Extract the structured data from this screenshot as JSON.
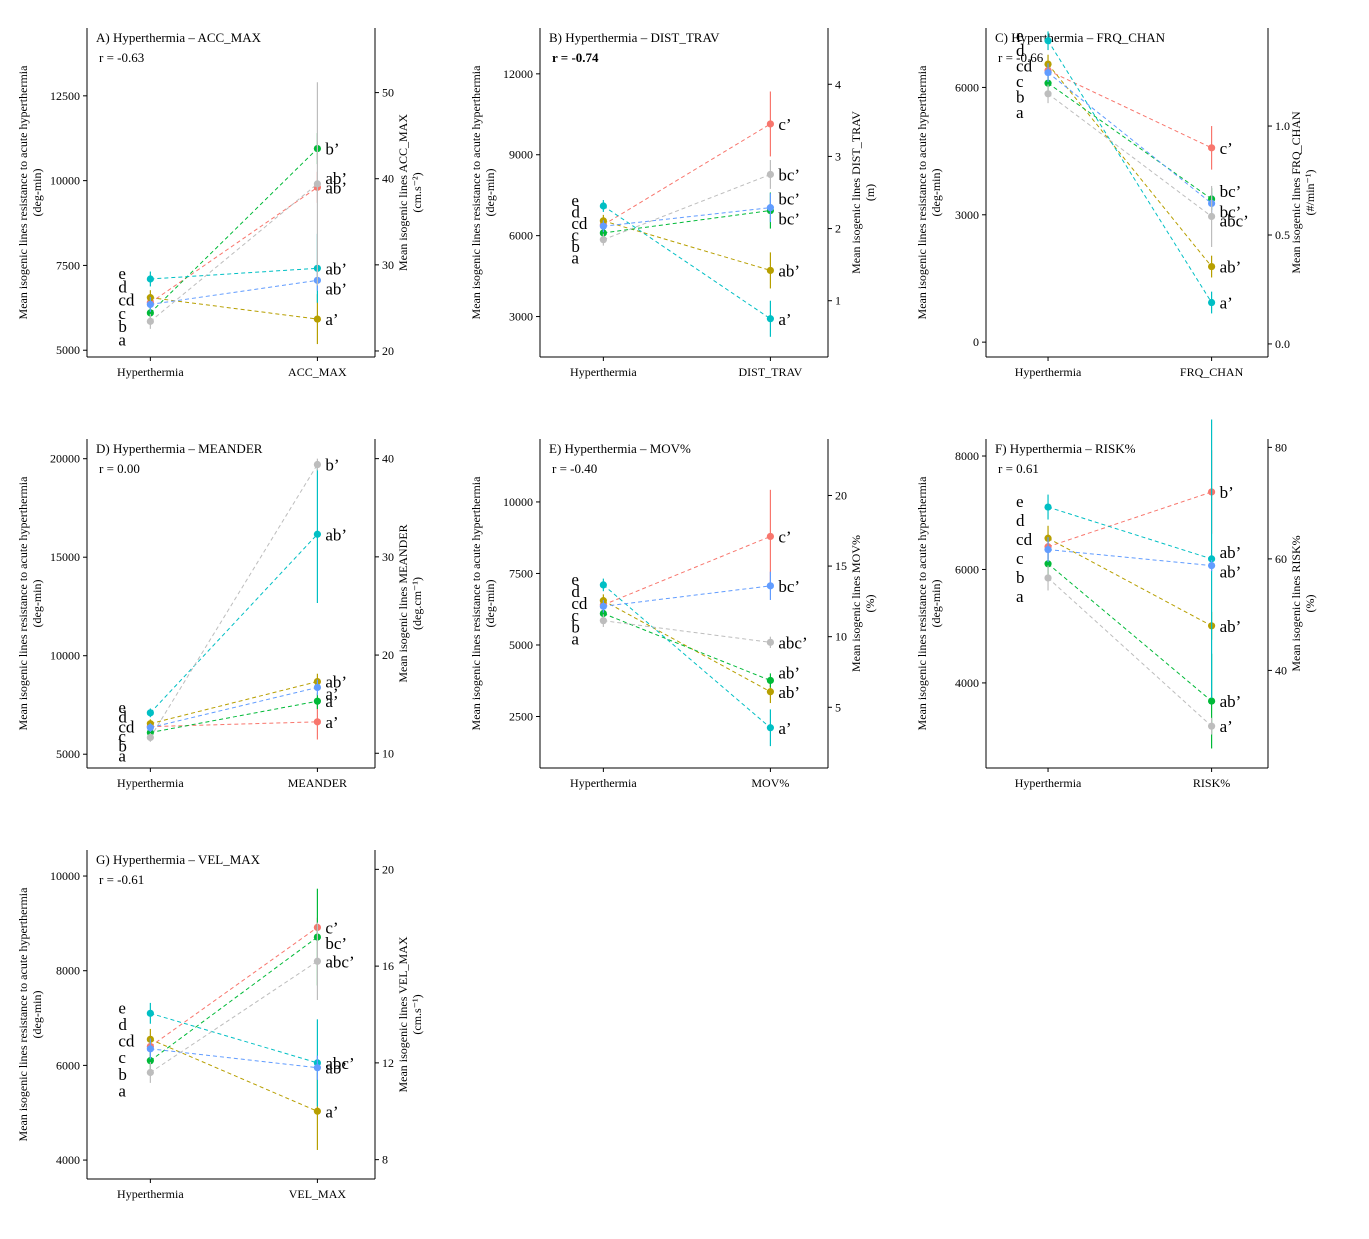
{
  "series_colors": [
    "#F8766D",
    "#B79F00",
    "#00BA38",
    "#00BFC4",
    "#619CFF",
    "#BDBDBD"
  ],
  "left_axis_title": [
    "Mean isogenic lines resistance to acute hyperthermia",
    "(deg-min)"
  ],
  "left_letters": [
    "e",
    "d",
    "cd",
    "c",
    "b",
    "a"
  ],
  "chart_data": [
    {
      "type": "line",
      "panel": "A",
      "title": "A) Hyperthermia – ACC_MAX",
      "r_label": "r = -0.63",
      "r_bold": false,
      "categories": [
        "Hyperthermia",
        "ACC_MAX"
      ],
      "left_ylim": [
        4800,
        14500
      ],
      "left_ticks": [
        "5000",
        "7500",
        "10000",
        "12500"
      ],
      "right_ylim": [
        19.3,
        57.5
      ],
      "right_ticks": [
        "20",
        "30",
        "40",
        "50"
      ],
      "right_title": [
        "Mean isogenic lines ACC_MAX",
        "(cm.s⁻²)"
      ],
      "left_values": [
        6400,
        6550,
        6100,
        7100,
        6350,
        5850
      ],
      "right_values": [
        39.0,
        23.7,
        43.5,
        29.6,
        28.2,
        39.4
      ],
      "right_err": [
        1.8,
        2.9,
        1.8,
        4.0,
        1.2,
        11.8
      ],
      "right_letters": [
        "ab’",
        "a’",
        "b’",
        "ab’",
        "ab’",
        "ab’"
      ]
    },
    {
      "type": "line",
      "panel": "B",
      "title": "B) Hyperthermia – DIST_TRAV",
      "r_label": "r = -0.74",
      "r_bold": true,
      "categories": [
        "Hyperthermia",
        "DIST_TRAV"
      ],
      "left_ylim": [
        1500,
        13700
      ],
      "left_ticks": [
        "3000",
        "6000",
        "9000",
        "12000"
      ],
      "right_ylim": [
        0.22,
        4.78
      ],
      "right_ticks": [
        "1",
        "2",
        "3",
        "4"
      ],
      "right_title": [
        "Mean isogenic lines DIST_TRAV",
        "(m)"
      ],
      "left_values": [
        6400,
        6550,
        6100,
        7100,
        6350,
        5850
      ],
      "right_values": [
        3.45,
        1.42,
        2.25,
        0.75,
        2.29,
        2.75
      ],
      "right_err": [
        0.45,
        0.25,
        0.25,
        0.25,
        0.2,
        0.2
      ],
      "right_letters": [
        "c’",
        "ab’",
        "bc’",
        "a’",
        "bc’",
        "bc’"
      ]
    },
    {
      "type": "line",
      "panel": "C",
      "title": "C) Hyperthermia – FRQ_CHAN",
      "r_label": "r = -0.66",
      "r_bold": false,
      "categories": [
        "Hyperthermia",
        "FRQ_CHAN"
      ],
      "left_ylim": [
        -350,
        7400
      ],
      "left_ticks": [
        "0",
        "3000",
        "6000"
      ],
      "right_ylim": [
        -0.06,
        1.45
      ],
      "right_ticks": [
        "0.0",
        "0.5",
        "1.0"
      ],
      "right_title": [
        "Mean isogenic lines FRQ_CHAN",
        "(#/min⁻¹)"
      ],
      "left_values": [
        6400,
        6550,
        6100,
        7100,
        6350,
        5850
      ],
      "right_values": [
        0.9,
        0.355,
        0.665,
        0.19,
        0.645,
        0.585
      ],
      "right_err": [
        0.1,
        0.05,
        0.05,
        0.05,
        0.05,
        0.14
      ],
      "right_letters": [
        "c’",
        "ab’",
        "bc’",
        "a’",
        "bc’",
        "abc’"
      ]
    },
    {
      "type": "line",
      "panel": "D",
      "title": "D) Hyperthermia – MEANDER",
      "r_label": "r = 0.00",
      "r_bold": false,
      "categories": [
        "Hyperthermia",
        "MEANDER"
      ],
      "left_ylim": [
        4300,
        21000
      ],
      "left_ticks": [
        "5000",
        "10000",
        "15000",
        "20000"
      ],
      "right_ylim": [
        8.5,
        42.0
      ],
      "right_ticks": [
        "10",
        "20",
        "30",
        "40"
      ],
      "right_title": [
        "Mean isogenic lines MEANDER",
        "(deg.cm⁻¹)"
      ],
      "left_values": [
        6400,
        6550,
        6100,
        7100,
        6350,
        5850
      ],
      "right_values": [
        13.2,
        17.3,
        15.3,
        32.3,
        16.7,
        39.4
      ],
      "right_err": [
        1.8,
        0.8,
        0.8,
        7.0,
        0.8,
        0.6
      ],
      "right_letters": [
        "a’",
        "ab’",
        "a’",
        "ab’",
        "a’",
        "b’"
      ]
    },
    {
      "type": "line",
      "panel": "E",
      "title": "E) Hyperthermia – MOV%",
      "r_label": "r = -0.40",
      "r_bold": false,
      "categories": [
        "Hyperthermia",
        "MOV%"
      ],
      "left_ylim": [
        700,
        12200
      ],
      "left_ticks": [
        "2500",
        "5000",
        "7500",
        "10000"
      ],
      "right_ylim": [
        0.7,
        24.0
      ],
      "right_ticks": [
        "5",
        "10",
        "15",
        "20"
      ],
      "right_title": [
        "Mean isogenic lines MOV%",
        "(%)"
      ],
      "left_values": [
        6400,
        6550,
        6100,
        7100,
        6350,
        5850
      ],
      "right_values": [
        17.1,
        6.1,
        6.9,
        3.55,
        13.6,
        9.6
      ],
      "right_err": [
        3.3,
        0.8,
        0.5,
        1.3,
        1.0,
        0.4
      ],
      "right_letters": [
        "c’",
        "ab’",
        "ab’",
        "a’",
        "bc’",
        "abc’"
      ]
    },
    {
      "type": "line",
      "panel": "F",
      "title": "F) Hyperthermia – RISK%",
      "r_label": "r = 0.61",
      "r_bold": false,
      "categories": [
        "Hyperthermia",
        "RISK%"
      ],
      "left_ylim": [
        2500,
        8300
      ],
      "left_ticks": [
        "4000",
        "6000",
        "8000"
      ],
      "right_ylim": [
        22.5,
        81.5
      ],
      "right_ticks": [
        "40",
        "60",
        "80"
      ],
      "right_title": [
        "Mean isogenic lines RISK%",
        "(%)"
      ],
      "left_values": [
        6400,
        6550,
        6100,
        7100,
        6350,
        5850
      ],
      "right_values": [
        72.0,
        48.0,
        34.5,
        60.0,
        58.8,
        30.0
      ],
      "right_err": [
        7.5,
        2.5,
        8.5,
        25.0,
        1.0,
        1.5
      ],
      "right_letters": [
        "b’",
        "ab’",
        "ab’",
        "ab’",
        "ab’",
        "a’"
      ]
    },
    {
      "type": "line",
      "panel": "G",
      "title": "G) Hyperthermia – VEL_MAX",
      "r_label": "r = -0.61",
      "r_bold": false,
      "categories": [
        "Hyperthermia",
        "VEL_MAX"
      ],
      "left_ylim": [
        3600,
        10550
      ],
      "left_ticks": [
        "4000",
        "6000",
        "8000",
        "10000"
      ],
      "right_ylim": [
        7.2,
        20.8
      ],
      "right_ticks": [
        "8",
        "12",
        "16",
        "20"
      ],
      "right_title": [
        "Mean isogenic lines VEL_MAX",
        "(cm.s⁻¹)"
      ],
      "left_values": [
        6400,
        6550,
        6100,
        7100,
        6350,
        5850
      ],
      "right_values": [
        17.6,
        10.0,
        17.2,
        12.0,
        11.8,
        16.2
      ],
      "right_err": [
        0.4,
        1.6,
        2.0,
        1.8,
        0.5,
        1.6
      ],
      "right_letters": [
        "c’",
        "a’",
        "bc’",
        "abc’",
        "ab’",
        "abc’"
      ]
    }
  ]
}
